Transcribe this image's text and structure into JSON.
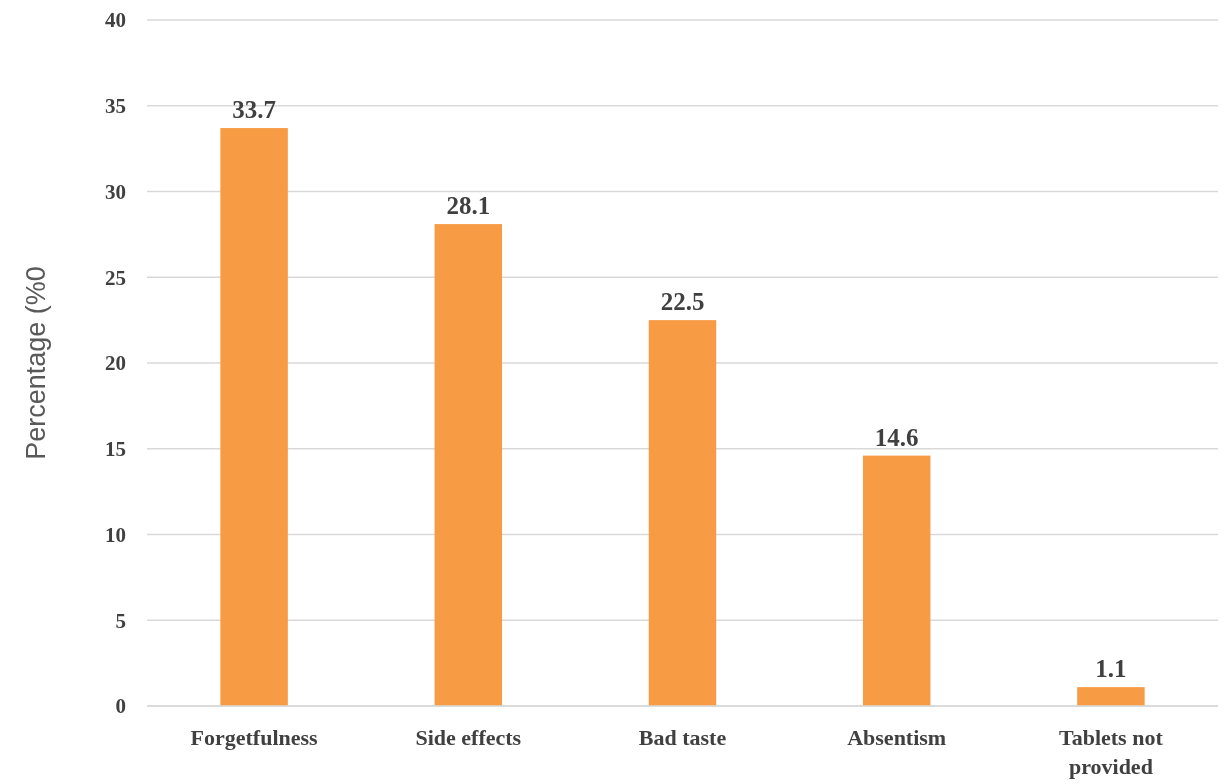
{
  "chart_data": {
    "type": "bar",
    "ylabel": "Percentage (%0",
    "categories": [
      "Forgetfulness",
      "Side effects",
      "Bad taste",
      "Absentism",
      "Tablets not provided"
    ],
    "values": [
      33.7,
      28.1,
      22.5,
      14.6,
      1.1
    ],
    "color": "#f79b45",
    "ylim": [
      0,
      40
    ],
    "yticks": [
      0,
      5,
      10,
      15,
      20,
      25,
      30,
      35,
      40
    ],
    "grid": "y",
    "data_labels": true
  }
}
